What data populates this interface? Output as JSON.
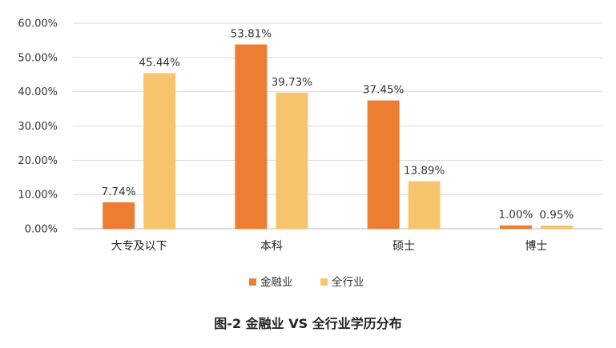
{
  "chart_data": {
    "type": "bar",
    "title": "图-2 金融业 VS 全行业学历分布",
    "categories": [
      "大专及以下",
      "本科",
      "硕士",
      "博士"
    ],
    "series": [
      {
        "name": "金融业",
        "values": [
          7.74,
          53.81,
          37.45,
          1.0
        ],
        "labels": [
          "7.74%",
          "53.81%",
          "37.45%",
          "1.00%"
        ],
        "color": "#ED7D31"
      },
      {
        "name": "全行业",
        "values": [
          45.44,
          39.73,
          13.89,
          0.95
        ],
        "labels": [
          "45.44%",
          "39.73%",
          "13.89%",
          "0.95%"
        ],
        "color": "#F6C56B"
      }
    ],
    "ylim": [
      0,
      60
    ],
    "yticks": [
      0,
      10,
      20,
      30,
      40,
      50,
      60
    ],
    "ytick_labels": [
      "0.00%",
      "10.00%",
      "20.00%",
      "30.00%",
      "40.00%",
      "50.00%",
      "60.00%"
    ],
    "grid": true,
    "legend_position": "bottom"
  }
}
